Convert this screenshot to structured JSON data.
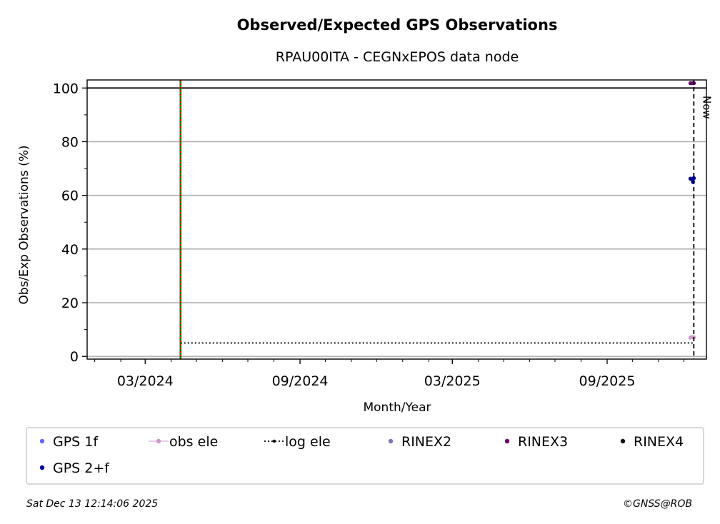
{
  "chart_data": {
    "type": "scatter",
    "title": "Observed/Expected GPS Observations",
    "subtitle": "RPAU00ITA - CEGNxEPOS data node",
    "xlabel": "Month/Year",
    "ylabel": "Obs/Exp Observations (%)",
    "xlim": [
      "2023-12-23",
      "2025-12-28"
    ],
    "ylim": [
      -1,
      103
    ],
    "yticks": [
      0,
      20,
      40,
      60,
      80,
      100
    ],
    "xticks": [
      {
        "date": "2024-03-01",
        "label": "03/2024"
      },
      {
        "date": "2024-09-01",
        "label": "09/2024"
      },
      {
        "date": "2025-03-01",
        "label": "03/2025"
      },
      {
        "date": "2025-09-01",
        "label": "09/2025"
      }
    ],
    "grid": "y",
    "reference_line": {
      "y": 100,
      "color": "#000000"
    },
    "installation_date": "2024-04-12",
    "now": {
      "date": "2025-12-13",
      "label": "Now"
    },
    "series": [
      {
        "name": "GPS 1f",
        "color": "#6666ff",
        "points": []
      },
      {
        "name": "obs ele",
        "color": "#cc99cc",
        "points": [
          {
            "x": "2025-12-09",
            "y": 7
          },
          {
            "x": "2025-12-11",
            "y": 7.2
          },
          {
            "x": "2025-12-13",
            "y": 7.1
          }
        ]
      },
      {
        "name": "log ele",
        "color": "#000000",
        "style": "dotted",
        "segment": {
          "x0": "2024-04-12",
          "x1": "2025-12-13",
          "y": 5
        }
      },
      {
        "name": "RINEX2",
        "color": "#7b74bb",
        "points": []
      },
      {
        "name": "RINEX3",
        "color": "#660066",
        "points": [
          {
            "x": "2025-12-09",
            "y": 101.8
          },
          {
            "x": "2025-12-11",
            "y": 101.8
          },
          {
            "x": "2025-12-13",
            "y": 101.8
          }
        ]
      },
      {
        "name": "RINEX4",
        "color": "#1a0a1a",
        "points": []
      },
      {
        "name": "GPS 2+f",
        "color": "#000099",
        "points": [
          {
            "x": "2025-12-09",
            "y": 66.2
          },
          {
            "x": "2025-12-11",
            "y": 66.0
          },
          {
            "x": "2025-12-12",
            "y": 65.0
          },
          {
            "x": "2025-12-13",
            "y": 66.4
          }
        ]
      }
    ],
    "legend": {
      "placement": "bottom",
      "columns": 6,
      "entries": [
        {
          "label": "GPS 1f",
          "marker": "dot",
          "color": "#6666ff"
        },
        {
          "label": "obs ele",
          "marker": "line-dot",
          "color": "#cc99cc"
        },
        {
          "label": "log ele",
          "marker": "dotted-line",
          "color": "#000000"
        },
        {
          "label": "RINEX2",
          "marker": "dot",
          "color": "#7b74bb"
        },
        {
          "label": "RINEX3",
          "marker": "dot",
          "color": "#660066"
        },
        {
          "label": "RINEX4",
          "marker": "dot",
          "color": "#1a0a1a"
        },
        {
          "label": "GPS 2+f",
          "marker": "dot",
          "color": "#000099"
        }
      ]
    }
  },
  "footer": {
    "timestamp": "Sat Dec 13 12:14:06 2025",
    "credit": "©GNSS@ROB"
  },
  "colors": {
    "grid": "#b0b0b0",
    "installation_green": "#008000",
    "installation_red": "#ff0000"
  }
}
